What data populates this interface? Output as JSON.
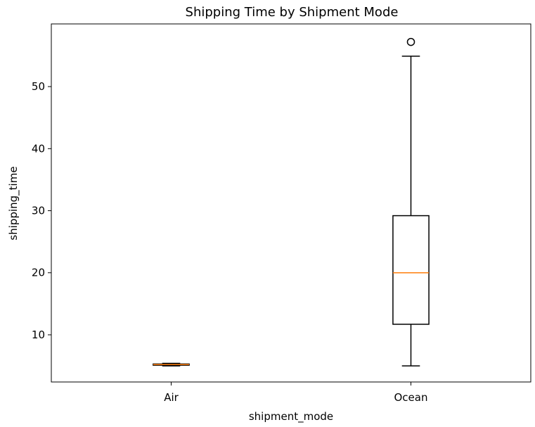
{
  "chart_data": {
    "type": "boxplot",
    "title": "Shipping Time by Shipment Mode",
    "xlabel": "shipment_mode",
    "ylabel": "shipping_time",
    "categories": [
      "Air",
      "Ocean"
    ],
    "yticks": [
      10,
      20,
      30,
      40,
      50
    ],
    "ylim": [
      2.4,
      60.1
    ],
    "grid": false,
    "boxes": [
      {
        "category": "Air",
        "whisker_low": 5.0,
        "q1": 5.1,
        "median": 5.2,
        "q3": 5.3,
        "whisker_high": 5.4,
        "fliers": []
      },
      {
        "category": "Ocean",
        "whisker_low": 5.0,
        "q1": 11.7,
        "median": 20.0,
        "q3": 29.2,
        "whisker_high": 54.9,
        "fliers": [
          57.2
        ]
      }
    ],
    "colors": {
      "box": "#000000",
      "median": "#ff7f0e",
      "flier": "#000000"
    }
  }
}
